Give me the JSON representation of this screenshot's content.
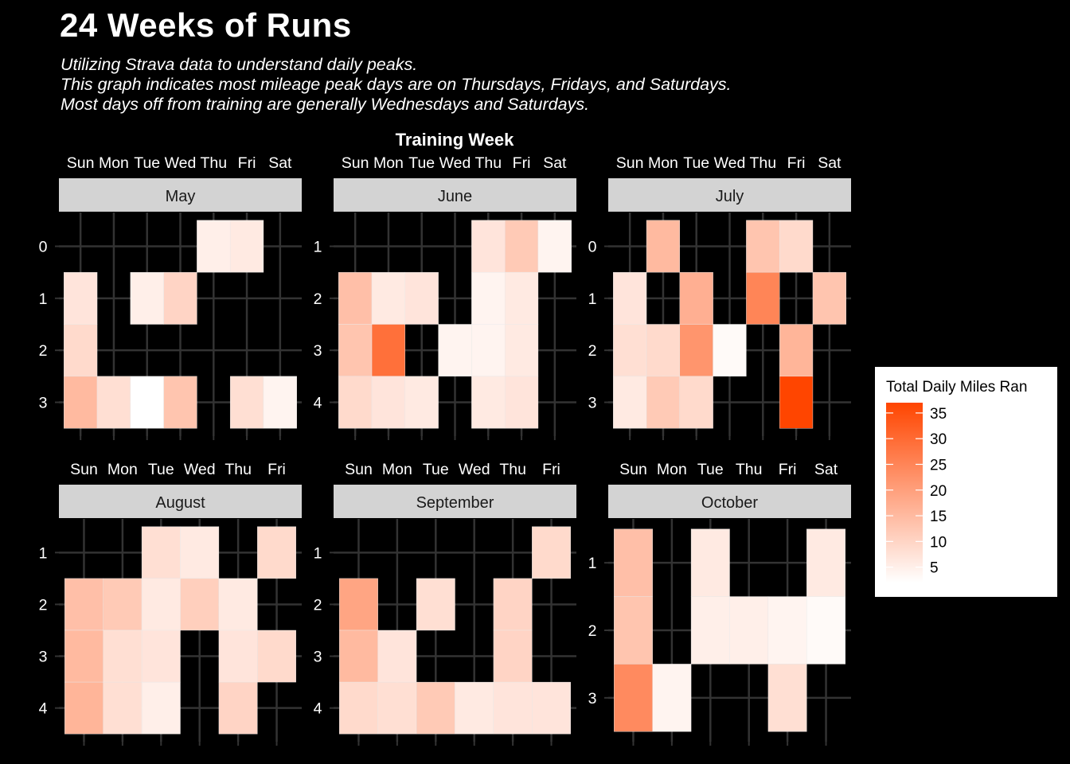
{
  "title": "24 Weeks of Runs",
  "subtitle": [
    "Utilizing Strava data to understand daily peaks.",
    "This graph indicates most mileage peak days are on Thursdays, Fridays, and Saturdays.",
    "Most days off from training are generally Wednesdays and Saturdays."
  ],
  "colors": {
    "background": "#000000",
    "low": "#FFFFFF",
    "high": "#FF4500",
    "strip": "#D3D3D3",
    "grid": "#333333"
  },
  "chart_data": {
    "type": "heatmap",
    "title": "24 Weeks of Runs",
    "xlabel": "Training Week",
    "fill_label": "Total Daily Miles Ran",
    "color_scale": {
      "min": 2,
      "max": 37,
      "low": "#FFFFFF",
      "high": "#FF4500"
    },
    "legend": {
      "title": "Total Daily Miles Ran",
      "ticks": [
        5,
        10,
        15,
        20,
        25,
        30,
        35
      ],
      "position": "right"
    },
    "grid": true,
    "panels": [
      {
        "month": "May",
        "days": [
          "Sun",
          "Mon",
          "Tue",
          "Wed",
          "Thu",
          "Fri",
          "Sat"
        ],
        "weeks": [
          0,
          1,
          2,
          3
        ],
        "cells": [
          {
            "day": "Thu",
            "week": 0,
            "miles": 5
          },
          {
            "day": "Fri",
            "week": 0,
            "miles": 6
          },
          {
            "day": "Sun",
            "week": 1,
            "miles": 7
          },
          {
            "day": "Tue",
            "week": 1,
            "miles": 5
          },
          {
            "day": "Wed",
            "week": 1,
            "miles": 10
          },
          {
            "day": "Sun",
            "week": 2,
            "miles": 9
          },
          {
            "day": "Sun",
            "week": 3,
            "miles": 15
          },
          {
            "day": "Mon",
            "week": 3,
            "miles": 8
          },
          {
            "day": "Tue",
            "week": 3,
            "miles": 2
          },
          {
            "day": "Wed",
            "week": 3,
            "miles": 13
          },
          {
            "day": "Fri",
            "week": 3,
            "miles": 8
          },
          {
            "day": "Sat",
            "week": 3,
            "miles": 4
          }
        ]
      },
      {
        "month": "June",
        "days": [
          "Sun",
          "Mon",
          "Tue",
          "Wed",
          "Thu",
          "Fri",
          "Sat"
        ],
        "weeks": [
          1,
          2,
          3,
          4
        ],
        "cells": [
          {
            "day": "Thu",
            "week": 1,
            "miles": 7
          },
          {
            "day": "Fri",
            "week": 1,
            "miles": 12
          },
          {
            "day": "Sat",
            "week": 1,
            "miles": 4
          },
          {
            "day": "Sun",
            "week": 2,
            "miles": 14
          },
          {
            "day": "Mon",
            "week": 2,
            "miles": 6
          },
          {
            "day": "Tue",
            "week": 2,
            "miles": 7
          },
          {
            "day": "Thu",
            "week": 2,
            "miles": 4
          },
          {
            "day": "Fri",
            "week": 2,
            "miles": 6
          },
          {
            "day": "Sun",
            "week": 3,
            "miles": 13
          },
          {
            "day": "Mon",
            "week": 3,
            "miles": 29
          },
          {
            "day": "Wed",
            "week": 3,
            "miles": 4
          },
          {
            "day": "Thu",
            "week": 3,
            "miles": 4
          },
          {
            "day": "Fri",
            "week": 3,
            "miles": 6
          },
          {
            "day": "Sun",
            "week": 4,
            "miles": 9
          },
          {
            "day": "Mon",
            "week": 4,
            "miles": 7
          },
          {
            "day": "Tue",
            "week": 4,
            "miles": 6
          },
          {
            "day": "Thu",
            "week": 4,
            "miles": 6
          },
          {
            "day": "Fri",
            "week": 4,
            "miles": 7
          }
        ]
      },
      {
        "month": "July",
        "days": [
          "Sun",
          "Mon",
          "Tue",
          "Wed",
          "Thu",
          "Fri",
          "Sat"
        ],
        "weeks": [
          0,
          1,
          2,
          3
        ],
        "cells": [
          {
            "day": "Mon",
            "week": 0,
            "miles": 15
          },
          {
            "day": "Thu",
            "week": 0,
            "miles": 13
          },
          {
            "day": "Fri",
            "week": 0,
            "miles": 9
          },
          {
            "day": "Sun",
            "week": 1,
            "miles": 7
          },
          {
            "day": "Tue",
            "week": 1,
            "miles": 17
          },
          {
            "day": "Thu",
            "week": 1,
            "miles": 25
          },
          {
            "day": "Sat",
            "week": 1,
            "miles": 13
          },
          {
            "day": "Sun",
            "week": 2,
            "miles": 8
          },
          {
            "day": "Mon",
            "week": 2,
            "miles": 9
          },
          {
            "day": "Tue",
            "week": 2,
            "miles": 22
          },
          {
            "day": "Wed",
            "week": 2,
            "miles": 3
          },
          {
            "day": "Fri",
            "week": 2,
            "miles": 16
          },
          {
            "day": "Sun",
            "week": 3,
            "miles": 6
          },
          {
            "day": "Mon",
            "week": 3,
            "miles": 12
          },
          {
            "day": "Tue",
            "week": 3,
            "miles": 9
          },
          {
            "day": "Fri",
            "week": 3,
            "miles": 37
          }
        ]
      },
      {
        "month": "August",
        "days": [
          "Sun",
          "Mon",
          "Tue",
          "Wed",
          "Thu",
          "Fri"
        ],
        "weeks": [
          1,
          2,
          3,
          4
        ],
        "cells": [
          {
            "day": "Tue",
            "week": 1,
            "miles": 8
          },
          {
            "day": "Wed",
            "week": 1,
            "miles": 6
          },
          {
            "day": "Fri",
            "week": 1,
            "miles": 9
          },
          {
            "day": "Sun",
            "week": 2,
            "miles": 14
          },
          {
            "day": "Mon",
            "week": 2,
            "miles": 12
          },
          {
            "day": "Tue",
            "week": 2,
            "miles": 6
          },
          {
            "day": "Wed",
            "week": 2,
            "miles": 11
          },
          {
            "day": "Thu",
            "week": 2,
            "miles": 6
          },
          {
            "day": "Sun",
            "week": 3,
            "miles": 15
          },
          {
            "day": "Mon",
            "week": 3,
            "miles": 8
          },
          {
            "day": "Tue",
            "week": 3,
            "miles": 7
          },
          {
            "day": "Thu",
            "week": 3,
            "miles": 7
          },
          {
            "day": "Fri",
            "week": 3,
            "miles": 9
          },
          {
            "day": "Sun",
            "week": 4,
            "miles": 16
          },
          {
            "day": "Mon",
            "week": 4,
            "miles": 8
          },
          {
            "day": "Tue",
            "week": 4,
            "miles": 5
          },
          {
            "day": "Thu",
            "week": 4,
            "miles": 10
          }
        ]
      },
      {
        "month": "September",
        "days": [
          "Sun",
          "Mon",
          "Tue",
          "Wed",
          "Thu",
          "Fri"
        ],
        "weeks": [
          1,
          2,
          3,
          4
        ],
        "cells": [
          {
            "day": "Fri",
            "week": 1,
            "miles": 9
          },
          {
            "day": "Sun",
            "week": 2,
            "miles": 19
          },
          {
            "day": "Tue",
            "week": 2,
            "miles": 8
          },
          {
            "day": "Thu",
            "week": 2,
            "miles": 10
          },
          {
            "day": "Sun",
            "week": 3,
            "miles": 15
          },
          {
            "day": "Mon",
            "week": 3,
            "miles": 7
          },
          {
            "day": "Thu",
            "week": 3,
            "miles": 10
          },
          {
            "day": "Sun",
            "week": 4,
            "miles": 9
          },
          {
            "day": "Mon",
            "week": 4,
            "miles": 8
          },
          {
            "day": "Tue",
            "week": 4,
            "miles": 12
          },
          {
            "day": "Wed",
            "week": 4,
            "miles": 6
          },
          {
            "day": "Thu",
            "week": 4,
            "miles": 7
          },
          {
            "day": "Fri",
            "week": 4,
            "miles": 7
          }
        ]
      },
      {
        "month": "October",
        "days": [
          "Sun",
          "Mon",
          "Tue",
          "Thu",
          "Fri",
          "Sat"
        ],
        "weeks": [
          1,
          2,
          3
        ],
        "cells": [
          {
            "day": "Sun",
            "week": 1,
            "miles": 14
          },
          {
            "day": "Tue",
            "week": 1,
            "miles": 6
          },
          {
            "day": "Sat",
            "week": 1,
            "miles": 6
          },
          {
            "day": "Sun",
            "week": 2,
            "miles": 13
          },
          {
            "day": "Tue",
            "week": 2,
            "miles": 5
          },
          {
            "day": "Thu",
            "week": 2,
            "miles": 5
          },
          {
            "day": "Fri",
            "week": 2,
            "miles": 4
          },
          {
            "day": "Sat",
            "week": 2,
            "miles": 3
          },
          {
            "day": "Sun",
            "week": 3,
            "miles": 24
          },
          {
            "day": "Mon",
            "week": 3,
            "miles": 4
          },
          {
            "day": "Fri",
            "week": 3,
            "miles": 8
          }
        ]
      }
    ]
  }
}
